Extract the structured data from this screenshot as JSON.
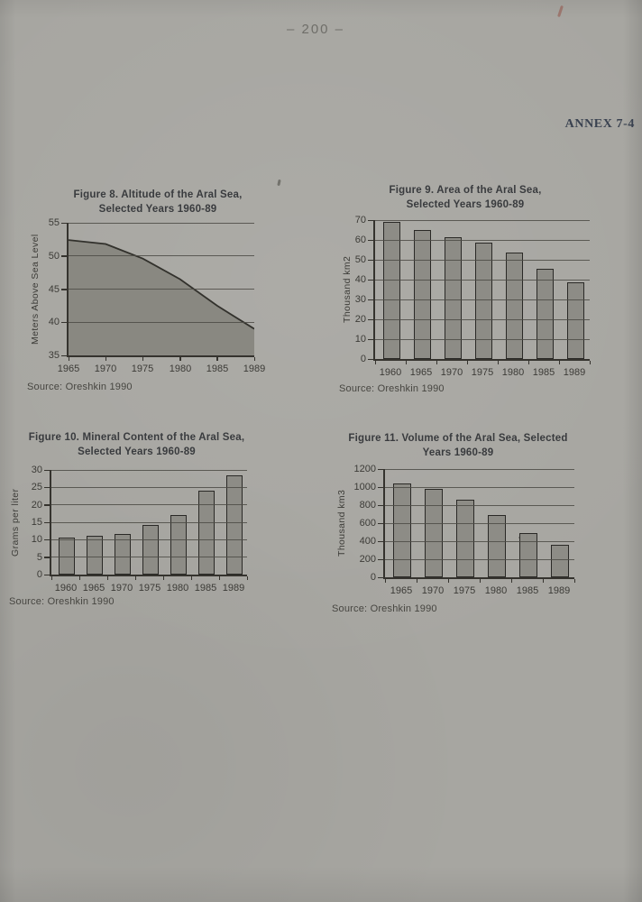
{
  "page": {
    "page_number": "– 200 –",
    "annex_label": "ANNEX 7-4"
  },
  "chart_data": [
    {
      "id": "figure-8",
      "type": "area",
      "title": "Figure 8. Altitude of the Aral Sea, Selected Years 1960-89",
      "title_line1": "Figure 8. Altitude of the Aral Sea,",
      "title_line2": "Selected Years 1960-89",
      "ylabel": "Meters Above Sea Level",
      "xlabel": "",
      "categories": [
        "1965",
        "1970",
        "1975",
        "1980",
        "1985",
        "1989"
      ],
      "values": [
        52.4,
        51.8,
        49.6,
        46.5,
        42.5,
        39
      ],
      "ylim": [
        35,
        55
      ],
      "yticks": [
        35,
        40,
        45,
        50,
        55
      ],
      "grid": true,
      "legend": "none",
      "source": "Source: Oreshkin 1990"
    },
    {
      "id": "figure-9",
      "type": "bar",
      "title": "Figure 9. Area of the Aral Sea, Selected Years 1960-89",
      "title_line1": "Figure 9. Area of the Aral Sea,",
      "title_line2": "Selected Years 1960-89",
      "ylabel": "Thousand km2",
      "xlabel": "",
      "categories": [
        "1960",
        "1965",
        "1970",
        "1975",
        "1980",
        "1985",
        "1989"
      ],
      "values": [
        68,
        64,
        60.5,
        57.5,
        52.5,
        44.5,
        37.5
      ],
      "ylim": [
        0,
        70
      ],
      "yticks": [
        0,
        10,
        20,
        30,
        40,
        50,
        60,
        70
      ],
      "grid": true,
      "legend": "none",
      "source": "Source: Oreshkin 1990"
    },
    {
      "id": "figure-10",
      "type": "bar",
      "title": "Figure 10. Mineral Content of the Aral Sea, Selected Years 1960-89",
      "title_line1": "Figure 10. Mineral Content of the Aral Sea,",
      "title_line2": "Selected Years 1960-89",
      "ylabel": "Grams per liter",
      "xlabel": "",
      "categories": [
        "1960",
        "1965",
        "1970",
        "1975",
        "1980",
        "1985",
        "1989"
      ],
      "values": [
        10,
        10.5,
        11,
        13.7,
        16.5,
        23.5,
        28
      ],
      "ylim": [
        0,
        30
      ],
      "yticks": [
        0,
        5,
        10,
        15,
        20,
        25,
        30
      ],
      "grid": true,
      "legend": "none",
      "source": "Source: Oreshkin 1990"
    },
    {
      "id": "figure-11",
      "type": "bar",
      "title": "Figure 11. Volume of the Aral Sea, Selected Years 1960-89",
      "title_line1": "Figure 11. Volume of the Aral Sea, Selected",
      "title_line2": "Years 1960-89",
      "ylabel": "Thousand km3",
      "xlabel": "",
      "categories": [
        "1965",
        "1970",
        "1975",
        "1980",
        "1985",
        "1989"
      ],
      "values": [
        1020,
        960,
        840,
        670,
        470,
        340
      ],
      "ylim": [
        0,
        1200
      ],
      "yticks": [
        0,
        200,
        400,
        600,
        800,
        1000,
        1200
      ],
      "grid": true,
      "legend": "none",
      "source": "Source: Oreshkin 1990"
    }
  ]
}
